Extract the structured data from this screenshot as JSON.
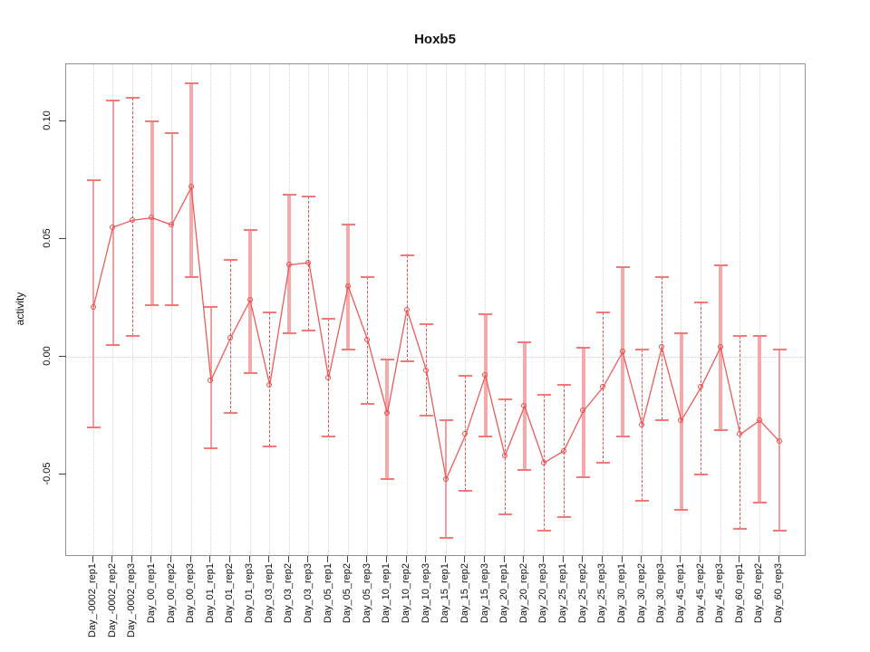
{
  "window": {
    "title": "Hoxb5"
  },
  "chart_data": {
    "type": "line",
    "title": "Hoxb5",
    "xlabel": "",
    "ylabel": "activity",
    "legend": "none",
    "point_marker": "open-circle",
    "ytick_labels": [
      "0.10",
      "0.05",
      "0.00",
      "-0.05"
    ],
    "ytick_values": [
      0.1,
      0.05,
      0.0,
      -0.05
    ],
    "ylim": [
      -0.085,
      0.124
    ],
    "grid": "vertical dotted line at every category; horizontal dotted line at y=0",
    "colors": {
      "series_line": "#ee5a5a",
      "marker": "#e84f4f",
      "stem_thick": "#f4aaaa",
      "stem_thin": "#f59c9c",
      "stem_dashed": "#e65757",
      "cap": "#f37878",
      "gridline": "#d4d4d4",
      "axis_box": "#909090",
      "tick": "#444444",
      "text": "#111111",
      "background": "#ffffff"
    },
    "categories": [
      "Day_-0002_rep1",
      "Day_-0002_rep2",
      "Day_-0002_rep3",
      "Day_00_rep1",
      "Day_00_rep2",
      "Day_00_rep3",
      "Day_01_rep1",
      "Day_01_rep2",
      "Day_01_rep3",
      "Day_03_rep1",
      "Day_03_rep2",
      "Day_03_rep3",
      "Day_05_rep1",
      "Day_05_rep2",
      "Day_05_rep3",
      "Day_10_rep1",
      "Day_10_rep2",
      "Day_10_rep3",
      "Day_15_rep1",
      "Day_15_rep2",
      "Day_15_rep3",
      "Day_20_rep1",
      "Day_20_rep2",
      "Day_20_rep3",
      "Day_25_rep1",
      "Day_25_rep2",
      "Day_25_rep3",
      "Day_30_rep1",
      "Day_30_rep2",
      "Day_30_rep3",
      "Day_45_rep1",
      "Day_45_rep2",
      "Day_45_rep3",
      "Day_60_rep1",
      "Day_60_rep2",
      "Day_60_rep3"
    ],
    "series": [
      {
        "name": "activity",
        "values": [
          0.021,
          0.055,
          0.058,
          0.059,
          0.056,
          0.072,
          -0.01,
          0.008,
          0.024,
          -0.012,
          0.039,
          0.04,
          -0.009,
          0.03,
          0.007,
          -0.024,
          0.02,
          -0.006,
          -0.052,
          -0.033,
          -0.008,
          -0.042,
          -0.021,
          -0.045,
          -0.04,
          -0.023,
          -0.013,
          0.002,
          -0.029,
          0.004,
          -0.027,
          -0.013,
          0.004,
          -0.033,
          -0.027,
          -0.036
        ],
        "err_high": [
          0.075,
          0.109,
          0.11,
          0.1,
          0.095,
          0.116,
          0.021,
          0.041,
          0.054,
          0.019,
          0.069,
          0.068,
          0.016,
          0.056,
          0.034,
          -0.001,
          0.043,
          0.014,
          -0.027,
          -0.008,
          0.018,
          -0.018,
          0.006,
          -0.016,
          -0.012,
          0.004,
          0.019,
          0.038,
          0.003,
          0.034,
          0.01,
          0.023,
          0.039,
          0.009,
          0.009,
          0.003
        ],
        "err_low": [
          -0.03,
          0.005,
          0.009,
          0.022,
          0.022,
          0.034,
          -0.039,
          -0.024,
          -0.007,
          -0.038,
          0.01,
          0.011,
          -0.034,
          0.003,
          -0.02,
          -0.052,
          -0.002,
          -0.025,
          -0.077,
          -0.057,
          -0.034,
          -0.067,
          -0.048,
          -0.074,
          -0.068,
          -0.051,
          -0.045,
          -0.034,
          -0.061,
          -0.027,
          -0.065,
          -0.05,
          -0.031,
          -0.073,
          -0.062,
          -0.074
        ],
        "stem_styles": [
          "thin",
          "thin",
          "dashed",
          "thick",
          "thin",
          "thick",
          "thin",
          "dashed",
          "thick",
          "dashed",
          "thick",
          "dashed",
          "dashed",
          "thick",
          "dashed",
          "thick",
          "dashed",
          "dashed",
          "thin",
          "dashed",
          "thick",
          "dashed",
          "thick",
          "dashed",
          "dashed",
          "thick",
          "dashed",
          "thick",
          "dashed",
          "dashed",
          "thick",
          "dashed",
          "thick",
          "dashed",
          "thick",
          "thin"
        ]
      }
    ]
  }
}
